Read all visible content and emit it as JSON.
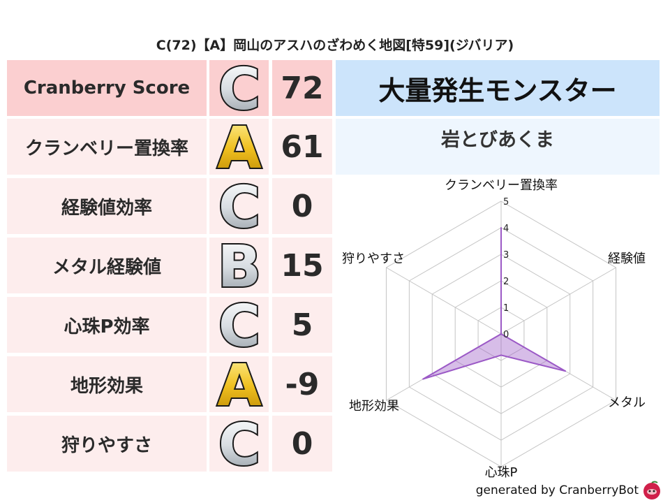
{
  "title": "C(72)【A】岡山のアスハのざわめく地図[特59](ジバリア)",
  "rows": [
    {
      "label": "Cranberry Score",
      "grade": "C",
      "score": "72"
    },
    {
      "label": "クランベリー置換率",
      "grade": "A",
      "score": "61"
    },
    {
      "label": "経験値効率",
      "grade": "C",
      "score": "0"
    },
    {
      "label": "メタル経験値",
      "grade": "B",
      "score": "15"
    },
    {
      "label": "心珠P効率",
      "grade": "C",
      "score": "5"
    },
    {
      "label": "地形効果",
      "grade": "A",
      "score": "-9"
    },
    {
      "label": "狩りやすさ",
      "grade": "C",
      "score": "0"
    }
  ],
  "monster": {
    "header": "大量発生モンスター",
    "name": "岩とびあくま"
  },
  "chart_data": {
    "type": "radar",
    "axes": [
      "クランベリー置換率",
      "経験値",
      "メタル",
      "心珠P",
      "地形効果",
      "狩りやすさ"
    ],
    "values": [
      4,
      0,
      2.8,
      0.8,
      3.4,
      0
    ],
    "range": [
      0,
      5
    ],
    "ticks": [
      "0",
      "1",
      "2",
      "3",
      "4",
      "5"
    ],
    "grid": true,
    "color": "#9b59c6"
  },
  "footer": "generated by CranberryBot",
  "colors": {
    "grade_C": "silver",
    "grade_B": "silver",
    "grade_A": "gold"
  }
}
